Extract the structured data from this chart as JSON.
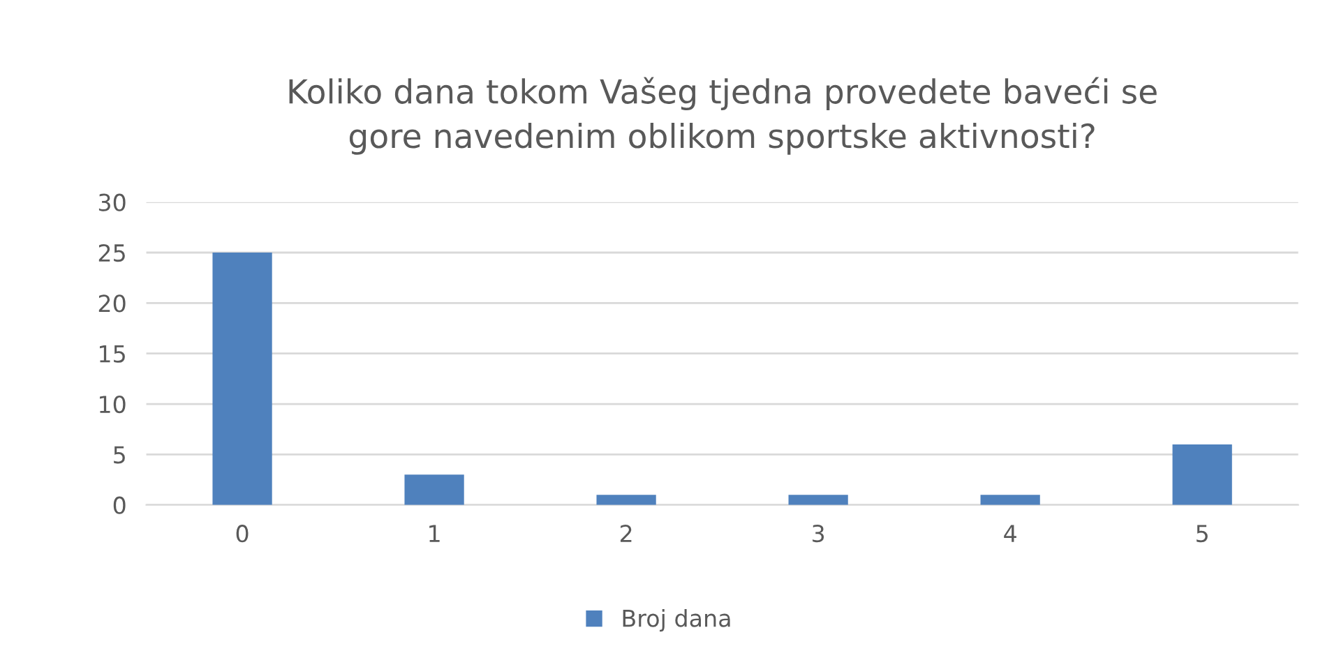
{
  "chart_data": {
    "type": "bar",
    "title": "Koliko dana tokom Vašeg tjedna provedete baveći se\ngore navedenim oblikom sportske aktivnosti?",
    "categories": [
      "0",
      "1",
      "2",
      "3",
      "4",
      "5"
    ],
    "series": [
      {
        "name": "Broj dana",
        "color": "#4f81bd",
        "values": [
          25,
          3,
          1,
          1,
          1,
          6
        ]
      }
    ],
    "ylim": [
      0,
      30
    ],
    "yticks": [
      0,
      5,
      10,
      15,
      20,
      25,
      30
    ],
    "grid": "y",
    "legend": "bottom"
  }
}
